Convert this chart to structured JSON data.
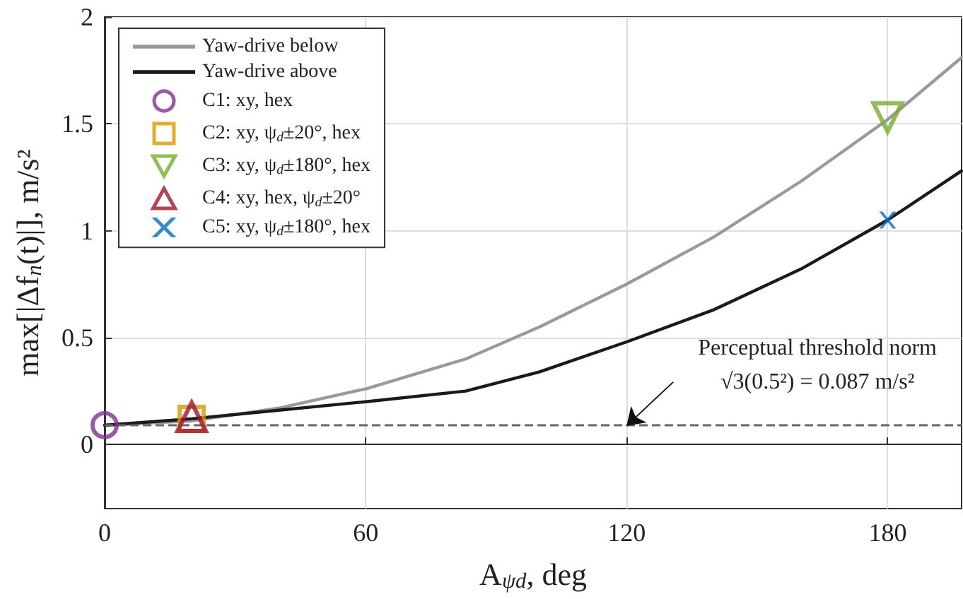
{
  "chart_data": {
    "type": "line",
    "xlabel": "A$_{ψd}$, deg",
    "ylabel": "max[|Δf$_{n}$(t)|], m/s²",
    "xlim": [
      0,
      197
    ],
    "xticks": [
      0,
      60,
      120,
      180
    ],
    "ylim": [
      -0.3,
      2
    ],
    "yticks": [
      0,
      0.5,
      1,
      1.5,
      2
    ],
    "grid": true,
    "legend": "top left",
    "marker": "none",
    "line_style": "solid",
    "series": [
      {
        "name": "Yaw-drive below",
        "color": "#9a9a9a",
        "x": [
          0,
          20,
          40,
          60,
          83,
          100,
          120,
          140,
          160,
          180,
          197
        ],
        "values": [
          0.09,
          0.11,
          0.17,
          0.26,
          0.4,
          0.55,
          0.75,
          0.97,
          1.23,
          1.52,
          1.81
        ]
      },
      {
        "name": "Yaw-drive above",
        "color": "#1a1a1a",
        "x": [
          0,
          20,
          40,
          60,
          83,
          100,
          120,
          140,
          160,
          180,
          197
        ],
        "values": [
          0.09,
          0.12,
          0.16,
          0.2,
          0.25,
          0.34,
          0.48,
          0.63,
          0.82,
          1.05,
          1.28
        ]
      },
      {
        "name": "C1: xy, hex",
        "type": "scatter",
        "marker": "circle",
        "color": "#7e2f8e",
        "x": [
          0
        ],
        "values": [
          0.09
        ]
      },
      {
        "name": "C2: xy, ψ$_{d}$±20°, hex",
        "type": "scatter",
        "marker": "square",
        "color": "#d99a00",
        "x": [
          20
        ],
        "values": [
          0.12
        ]
      },
      {
        "name": "C3: xy, ψ$_{d}$±180°, hex",
        "type": "scatter",
        "marker": "triangle_down",
        "color": "#77ac30",
        "x": [
          180
        ],
        "values": [
          1.53
        ]
      },
      {
        "name": "C4: xy, hex, ψ$_{d}$±20°",
        "type": "scatter",
        "marker": "triangle",
        "color": "#a2142f",
        "x": [
          20
        ],
        "values": [
          0.13
        ]
      },
      {
        "name": "C5: xy, ψ$_{d}$±180°, hex",
        "type": "scatter",
        "marker": "cross",
        "color": "#0072bd",
        "x": [
          180
        ],
        "values": [
          1.05
        ]
      }
    ],
    "ref_lines": [
      {
        "axis": "y",
        "value": 0.087,
        "color": "#666666",
        "line_style": "dashed"
      }
    ],
    "annotations": [
      "Perceptual threshold norm",
      "√3(0.5²) = 0.087 m/s²"
    ]
  }
}
